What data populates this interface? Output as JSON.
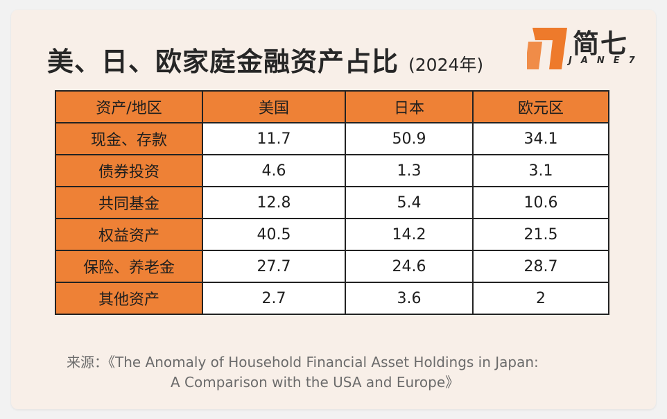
{
  "title": {
    "main": "美、日、欧家庭金融资产占比",
    "year": "(2024年)"
  },
  "logo": {
    "brand_cn": "简七",
    "brand_en": "JANE7",
    "accent_color": "#ee7a2b"
  },
  "chart_data": {
    "type": "table",
    "columns": [
      "资产/地区",
      "美国",
      "日本",
      "欧元区"
    ],
    "rows": [
      {
        "label": "现金、存款",
        "values": [
          "11.7",
          "50.9",
          "34.1"
        ]
      },
      {
        "label": "债券投资",
        "values": [
          "4.6",
          "1.3",
          "3.1"
        ]
      },
      {
        "label": "共同基金",
        "values": [
          "12.8",
          "5.4",
          "10.6"
        ]
      },
      {
        "label": "权益资产",
        "values": [
          "40.5",
          "14.2",
          "21.5"
        ]
      },
      {
        "label": "保险、养老金",
        "values": [
          "27.7",
          "24.6",
          "28.7"
        ]
      },
      {
        "label": "其他资产",
        "values": [
          "2.7",
          "3.6",
          "2"
        ]
      }
    ],
    "header_color": "#ee8136"
  },
  "source": {
    "line1": "来源：《The Anomaly of Household Financial Asset Holdings in Japan:",
    "line2": "A Comparison with the USA and Europe》"
  }
}
